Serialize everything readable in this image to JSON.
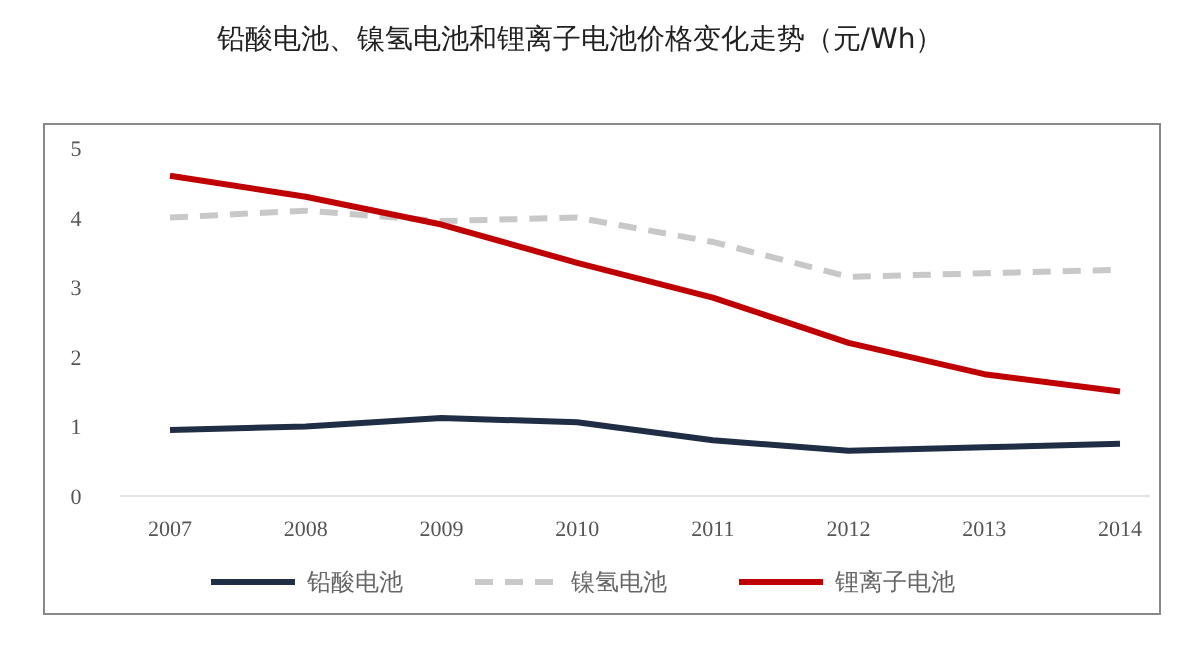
{
  "chart_data": {
    "type": "line",
    "title": "铅酸电池、镍氢电池和锂离子电池价格变化走势（元/Wh）",
    "categories": [
      "2007",
      "2008",
      "2009",
      "2010",
      "2011",
      "2012",
      "2013",
      "2014"
    ],
    "series": [
      {
        "name": "铅酸电池",
        "color": "#1f2d45",
        "values": [
          0.95,
          1.0,
          1.12,
          1.06,
          0.8,
          0.65,
          0.7,
          0.75
        ]
      },
      {
        "name": "镍氢电池",
        "color": "#c8c8c8",
        "line_style": "dashed",
        "values": [
          4.0,
          4.1,
          3.95,
          4.0,
          3.65,
          3.15,
          3.2,
          3.25
        ]
      },
      {
        "name": "锂离子电池",
        "color": "#c00000",
        "values": [
          4.6,
          4.3,
          3.9,
          3.35,
          2.85,
          2.2,
          1.75,
          1.5
        ]
      }
    ],
    "ylim": [
      0,
      5
    ],
    "yticks": [
      0,
      1,
      2,
      3,
      4,
      5
    ],
    "legend": "bottom"
  }
}
